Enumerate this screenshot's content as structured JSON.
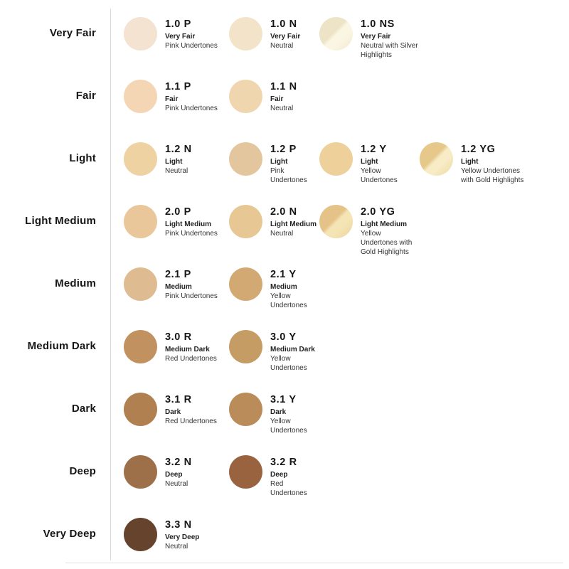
{
  "page": {
    "background": "#ffffff",
    "divider_color": "#d9d9d9",
    "text_color": "#161616"
  },
  "rows": [
    {
      "label": "Very Fair",
      "shades": [
        {
          "code": "1.0 P",
          "name": "Very Fair",
          "undertone": "Pink Undertones",
          "color": "#f4e3d0"
        },
        {
          "code": "1.0 N",
          "name": "Very Fair",
          "undertone": "Neutral",
          "color": "#f3e4c9"
        },
        {
          "code": "1.0 NS",
          "name": "Very Fair",
          "undertone": "Neutral with Silver Highlights",
          "color": "#ede3c6",
          "highlight": "#fbf6e4",
          "edge": "#f1e8cd",
          "finish": "silver-highlight"
        }
      ]
    },
    {
      "label": "Fair",
      "shades": [
        {
          "code": "1.1 P",
          "name": "Fair",
          "undertone": "Pink Undertones",
          "color": "#f4d6b4"
        },
        {
          "code": "1.1 N",
          "name": "Fair",
          "undertone": "Neutral",
          "color": "#f0d6ae"
        }
      ]
    },
    {
      "label": "Light",
      "shades": [
        {
          "code": "1.2 N",
          "name": "Light",
          "undertone": "Neutral",
          "color": "#eed2a2"
        },
        {
          "code": "1.2 P",
          "name": "Light",
          "undertone": "Pink Undertones",
          "color": "#e3c69e"
        },
        {
          "code": "1.2 Y",
          "name": "Light",
          "undertone": "Yellow Undertones",
          "color": "#eed09b"
        },
        {
          "code": "1.2 YG",
          "name": "Light",
          "undertone": "Yellow Undertones with Gold Highlights",
          "color": "#e7c88b",
          "highlight": "#f7ecc6",
          "edge": "#eed9a2",
          "finish": "gold-highlight"
        }
      ]
    },
    {
      "label": "Light Medium",
      "shades": [
        {
          "code": "2.0 P",
          "name": "Light Medium",
          "undertone": "Pink Undertones",
          "color": "#e9c79b"
        },
        {
          "code": "2.0 N",
          "name": "Light Medium",
          "undertone": "Neutral",
          "color": "#e7c894"
        },
        {
          "code": "2.0 YG",
          "name": "Light Medium",
          "undertone": "Yellow Undertones with Gold Highlights",
          "color": "#e5c287",
          "highlight": "#f5e4b4",
          "edge": "#ecd49b",
          "finish": "gold-highlight"
        }
      ]
    },
    {
      "label": "Medium",
      "shades": [
        {
          "code": "2.1 P",
          "name": "Medium",
          "undertone": "Pink Undertones",
          "color": "#debb90"
        },
        {
          "code": "2.1 Y",
          "name": "Medium",
          "undertone": "Yellow Undertones",
          "color": "#d2a972"
        }
      ]
    },
    {
      "label": "Medium Dark",
      "shades": [
        {
          "code": "3.0 R",
          "name": "Medium Dark",
          "undertone": "Red Undertones",
          "color": "#c29160"
        },
        {
          "code": "3.0 Y",
          "name": "Medium Dark",
          "undertone": "Yellow Undertones",
          "color": "#c59c63"
        }
      ]
    },
    {
      "label": "Dark",
      "shades": [
        {
          "code": "3.1 R",
          "name": "Dark",
          "undertone": "Red Undertones",
          "color": "#b08050"
        },
        {
          "code": "3.1 Y",
          "name": "Dark",
          "undertone": "Yellow Undertones",
          "color": "#b98c59"
        }
      ]
    },
    {
      "label": "Deep",
      "shades": [
        {
          "code": "3.2 N",
          "name": "Deep",
          "undertone": "Neutral",
          "color": "#9d7049"
        },
        {
          "code": "3.2 R",
          "name": "Deep",
          "undertone": "Red Undertones",
          "color": "#9a6340"
        }
      ]
    },
    {
      "label": "Very Deep",
      "shades": [
        {
          "code": "3.3 N",
          "name": "Very Deep",
          "undertone": "Neutral",
          "color": "#65432c"
        }
      ]
    }
  ]
}
